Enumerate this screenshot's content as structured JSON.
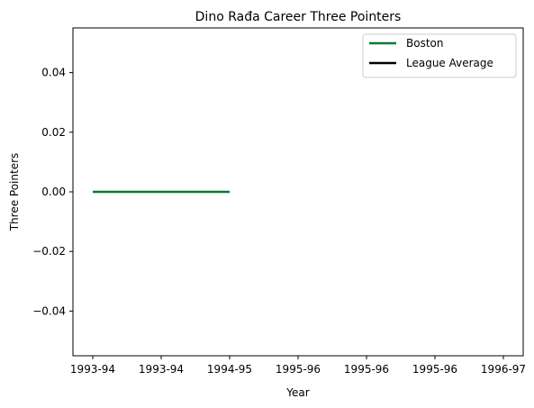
{
  "chart_data": {
    "type": "line",
    "title": "Dino Rađa Career Three Pointers",
    "xlabel": "Year",
    "ylabel": "Three Pointers",
    "x_ticks": [
      "1993-94",
      "1993-94",
      "1994-95",
      "1995-96",
      "1995-96",
      "1995-96",
      "1996-97"
    ],
    "ylim": [
      -0.055,
      0.055
    ],
    "y_ticks": [
      "0.04",
      "0.02",
      "0.00",
      "−0.02",
      "−0.04"
    ],
    "grid": false,
    "legend_position": "top-right",
    "series": [
      {
        "name": "Boston",
        "color": "#007a33",
        "x_index": [
          0,
          1,
          2
        ],
        "values": [
          0,
          0,
          0
        ]
      },
      {
        "name": "League Average",
        "color": "#000000",
        "x_index": [],
        "values": []
      }
    ]
  }
}
